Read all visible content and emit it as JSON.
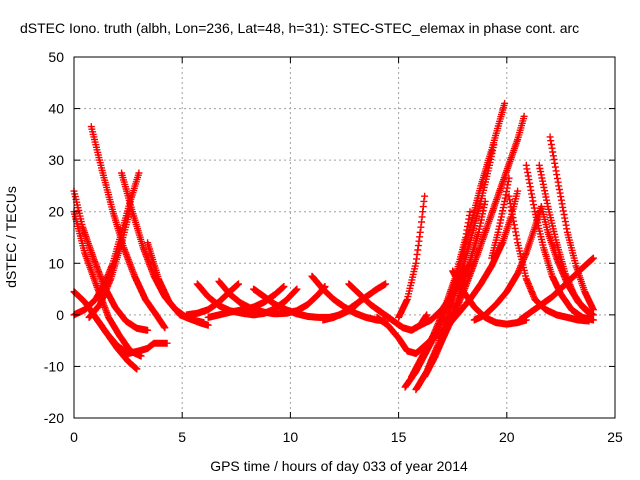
{
  "chart_data": {
    "type": "scatter",
    "title": "dSTEC Iono. truth (albh, Lon=236, Lat=48, h=31): STEC-STEC_elemax in phase cont. arc",
    "xlabel": "GPS time / hours of day 033 of year 2014",
    "ylabel": "dSTEC  / TECUs",
    "xlim": [
      0,
      25
    ],
    "ylim": [
      -20,
      50
    ],
    "xticks": [
      0,
      5,
      10,
      15,
      20,
      25
    ],
    "yticks": [
      -20,
      -10,
      0,
      10,
      20,
      30,
      40,
      50
    ],
    "grid": true,
    "marker": "plus",
    "color": "#ff0000",
    "series": [
      {
        "points": [
          [
            0.0,
            24
          ],
          [
            0.4,
            17
          ],
          [
            0.9,
            11
          ],
          [
            1.4,
            5.5
          ],
          [
            1.9,
            1.5
          ],
          [
            2.4,
            -1.2
          ],
          [
            2.9,
            -2.6
          ],
          [
            3.4,
            -3
          ]
        ]
      },
      {
        "points": [
          [
            0.0,
            20
          ],
          [
            0.5,
            12
          ],
          [
            1.1,
            5
          ],
          [
            1.6,
            -0.5
          ],
          [
            2.1,
            -4
          ],
          [
            2.6,
            -7
          ],
          [
            3.1,
            -8
          ]
        ]
      },
      {
        "points": [
          [
            0.0,
            4.5
          ],
          [
            0.5,
            2.5
          ],
          [
            1.0,
            -0.5
          ],
          [
            1.5,
            -3.5
          ],
          [
            2.0,
            -6.5
          ],
          [
            2.5,
            -9
          ],
          [
            2.9,
            -10.5
          ]
        ]
      },
      {
        "points": [
          [
            0.0,
            0
          ],
          [
            0.5,
            1
          ],
          [
            1.0,
            3
          ],
          [
            1.4,
            6
          ],
          [
            1.8,
            10
          ],
          [
            2.2,
            16
          ],
          [
            2.6,
            22
          ],
          [
            3.0,
            27.5
          ]
        ]
      },
      {
        "points": [
          [
            0.7,
            -0.5
          ],
          [
            1.2,
            2
          ],
          [
            1.7,
            7
          ],
          [
            2.2,
            14
          ],
          [
            2.6,
            20.5
          ]
        ]
      },
      {
        "points": [
          [
            0.8,
            36.5
          ],
          [
            1.3,
            28
          ],
          [
            1.8,
            20
          ],
          [
            2.3,
            13
          ],
          [
            2.8,
            7.5
          ],
          [
            3.3,
            3
          ],
          [
            3.8,
            0
          ],
          [
            4.2,
            -2.5
          ]
        ]
      },
      {
        "points": [
          [
            1.0,
            -0.5
          ],
          [
            1.5,
            -3.5
          ],
          [
            2.0,
            -6
          ],
          [
            2.5,
            -7.5
          ],
          [
            3.0,
            -7
          ],
          [
            3.4,
            -6.5
          ],
          [
            3.7,
            -5.5
          ],
          [
            4.3,
            -5.5
          ]
        ]
      },
      {
        "points": [
          [
            2.2,
            27.5
          ],
          [
            2.7,
            20
          ],
          [
            3.2,
            13
          ],
          [
            3.7,
            7.5
          ],
          [
            4.2,
            3.5
          ],
          [
            4.7,
            1
          ],
          [
            5.2,
            -0.5
          ],
          [
            5.8,
            -1.5
          ],
          [
            6.2,
            -2
          ]
        ]
      },
      {
        "points": [
          [
            3.4,
            14
          ],
          [
            3.9,
            7
          ],
          [
            4.4,
            2.5
          ],
          [
            4.9,
            0
          ],
          [
            5.5,
            -1
          ],
          [
            6.0,
            -1.5
          ]
        ]
      },
      {
        "points": [
          [
            5.7,
            6
          ],
          [
            6.2,
            3.5
          ],
          [
            6.7,
            1.8
          ],
          [
            7.2,
            0.8
          ],
          [
            7.8,
            0.3
          ],
          [
            8.3,
            0
          ],
          [
            8.8,
            0.3
          ],
          [
            9.3,
            1.2
          ],
          [
            9.8,
            2.8
          ],
          [
            10.3,
            5
          ]
        ]
      },
      {
        "points": [
          [
            5.2,
            0
          ],
          [
            5.7,
            0.3
          ],
          [
            6.2,
            1
          ],
          [
            6.7,
            2.5
          ],
          [
            7.2,
            4.5
          ],
          [
            7.6,
            6
          ]
        ]
      },
      {
        "points": [
          [
            6.2,
            -0.5
          ],
          [
            6.7,
            0
          ],
          [
            7.2,
            0.5
          ],
          [
            7.8,
            1
          ],
          [
            8.3,
            1.5
          ],
          [
            8.8,
            2.5
          ],
          [
            9.3,
            4
          ],
          [
            9.7,
            5.5
          ]
        ]
      },
      {
        "points": [
          [
            6.7,
            6.5
          ],
          [
            7.2,
            4
          ],
          [
            7.7,
            2.3
          ],
          [
            8.2,
            1.2
          ],
          [
            8.8,
            0.5
          ],
          [
            9.3,
            0.2
          ],
          [
            9.8,
            0.3
          ],
          [
            10.3,
            0.8
          ],
          [
            10.8,
            2
          ],
          [
            11.3,
            4
          ],
          [
            11.6,
            5.5
          ]
        ]
      },
      {
        "points": [
          [
            8.3,
            5
          ],
          [
            8.8,
            3.5
          ],
          [
            9.3,
            2
          ],
          [
            9.8,
            1
          ],
          [
            10.3,
            0.2
          ],
          [
            10.8,
            -0.3
          ],
          [
            11.3,
            -0.5
          ],
          [
            11.8,
            -0.5
          ],
          [
            12.3,
            0
          ],
          [
            12.8,
            1
          ],
          [
            13.3,
            3
          ]
        ]
      },
      {
        "points": [
          [
            11.0,
            7.5
          ],
          [
            11.5,
            5
          ],
          [
            12.0,
            3
          ],
          [
            12.5,
            1.5
          ],
          [
            13.0,
            0.3
          ],
          [
            13.5,
            -0.5
          ],
          [
            14.0,
            -1
          ],
          [
            14.4,
            -1.2
          ]
        ]
      },
      {
        "points": [
          [
            11.5,
            -1
          ],
          [
            12.0,
            -0.5
          ],
          [
            12.5,
            0.5
          ],
          [
            13.0,
            2
          ],
          [
            13.5,
            3.5
          ],
          [
            14.0,
            5
          ],
          [
            14.4,
            6
          ]
        ]
      },
      {
        "points": [
          [
            12.7,
            6
          ],
          [
            13.2,
            4
          ],
          [
            13.7,
            2
          ],
          [
            14.2,
            0.5
          ],
          [
            14.7,
            -1
          ],
          [
            15.2,
            -2.5
          ],
          [
            15.6,
            -3
          ],
          [
            16.0,
            -2
          ],
          [
            16.3,
            0
          ]
        ]
      },
      {
        "points": [
          [
            14.0,
            -0.5
          ],
          [
            14.5,
            -2
          ],
          [
            15.0,
            -4.5
          ],
          [
            15.4,
            -7
          ],
          [
            15.8,
            -7.5
          ],
          [
            16.2,
            -6
          ],
          [
            16.6,
            -4.5
          ]
        ]
      },
      {
        "points": [
          [
            15.0,
            -0.5
          ],
          [
            15.4,
            3
          ],
          [
            15.8,
            10
          ],
          [
            16.0,
            16
          ],
          [
            16.2,
            23
          ]
        ]
      },
      {
        "points": [
          [
            15.3,
            -14
          ],
          [
            15.8,
            -11
          ],
          [
            16.3,
            -7
          ],
          [
            16.8,
            -3
          ],
          [
            17.3,
            2
          ],
          [
            17.8,
            9
          ],
          [
            18.3,
            17
          ],
          [
            18.8,
            25
          ],
          [
            19.3,
            32
          ],
          [
            19.7,
            38
          ],
          [
            19.9,
            41
          ]
        ]
      },
      {
        "points": [
          [
            15.6,
            -12
          ],
          [
            16.1,
            -8
          ],
          [
            16.6,
            -4
          ],
          [
            17.1,
            1
          ],
          [
            17.6,
            7
          ],
          [
            18.1,
            15
          ],
          [
            18.3,
            20
          ]
        ]
      },
      {
        "points": [
          [
            15.8,
            -14.5
          ],
          [
            16.3,
            -11
          ],
          [
            16.8,
            -6
          ],
          [
            17.3,
            0
          ],
          [
            17.8,
            7
          ],
          [
            18.3,
            14
          ],
          [
            18.8,
            22
          ],
          [
            19.2,
            29
          ],
          [
            19.4,
            33
          ]
        ]
      },
      {
        "points": [
          [
            16.2,
            -12
          ],
          [
            16.7,
            -8
          ],
          [
            17.2,
            -3
          ],
          [
            17.7,
            2.5
          ],
          [
            18.2,
            9
          ],
          [
            18.7,
            16
          ],
          [
            19.0,
            22
          ]
        ]
      },
      {
        "points": [
          [
            16.5,
            -9
          ],
          [
            17.0,
            -5
          ],
          [
            17.5,
            -0.5
          ],
          [
            18.0,
            4.5
          ],
          [
            18.5,
            10
          ],
          [
            19.0,
            16
          ],
          [
            19.5,
            22
          ],
          [
            20.0,
            28
          ],
          [
            20.5,
            34
          ],
          [
            20.8,
            38.5
          ]
        ]
      },
      {
        "points": [
          [
            16.0,
            -2
          ],
          [
            16.5,
            -1
          ],
          [
            17.0,
            1
          ],
          [
            17.5,
            4
          ],
          [
            17.9,
            7
          ],
          [
            18.2,
            9.5
          ]
        ]
      },
      {
        "points": [
          [
            16.8,
            -4
          ],
          [
            17.3,
            -2
          ],
          [
            17.8,
            0.5
          ],
          [
            18.3,
            3
          ],
          [
            18.8,
            6
          ],
          [
            19.3,
            9.5
          ],
          [
            19.8,
            14
          ],
          [
            20.2,
            19
          ],
          [
            20.5,
            24
          ]
        ]
      },
      {
        "points": [
          [
            17.5,
            8.5
          ],
          [
            18.0,
            4.5
          ],
          [
            18.5,
            1.5
          ],
          [
            19.0,
            -0.5
          ],
          [
            19.5,
            -1.5
          ],
          [
            20.0,
            -1.8
          ],
          [
            20.5,
            -1.5
          ],
          [
            20.9,
            -1
          ]
        ]
      },
      {
        "points": [
          [
            18.5,
            -1
          ],
          [
            19.0,
            0
          ],
          [
            19.5,
            2
          ],
          [
            20.0,
            4.5
          ],
          [
            20.5,
            8
          ],
          [
            20.9,
            12
          ],
          [
            21.3,
            17
          ],
          [
            21.6,
            21
          ]
        ]
      },
      {
        "points": [
          [
            19.3,
            11
          ],
          [
            19.6,
            16
          ],
          [
            19.9,
            22
          ],
          [
            20.1,
            26.5
          ]
        ]
      },
      {
        "points": [
          [
            20.1,
            23
          ],
          [
            20.5,
            14
          ],
          [
            20.9,
            7
          ],
          [
            21.3,
            3
          ],
          [
            21.8,
            1
          ],
          [
            22.3,
            0
          ],
          [
            22.8,
            -0.5
          ],
          [
            23.3,
            -1
          ],
          [
            23.8,
            -1.2
          ]
        ]
      },
      {
        "points": [
          [
            20.9,
            29
          ],
          [
            21.3,
            20
          ],
          [
            21.7,
            13
          ],
          [
            22.1,
            7.5
          ],
          [
            22.5,
            4
          ],
          [
            23.0,
            1
          ],
          [
            23.5,
            -0.5
          ],
          [
            24.0,
            -1
          ]
        ]
      },
      {
        "points": [
          [
            22.0,
            34.5
          ],
          [
            22.4,
            25
          ],
          [
            22.8,
            16
          ],
          [
            23.2,
            9.5
          ],
          [
            23.6,
            4.5
          ],
          [
            24.0,
            1
          ]
        ]
      },
      {
        "points": [
          [
            21.5,
            29
          ],
          [
            21.9,
            21
          ],
          [
            22.3,
            14
          ],
          [
            22.7,
            8
          ],
          [
            23.1,
            4
          ],
          [
            23.5,
            1.5
          ],
          [
            23.9,
            0
          ]
        ]
      },
      {
        "points": [
          [
            21.6,
            21
          ],
          [
            21.9,
            16
          ],
          [
            22.3,
            11
          ],
          [
            22.8,
            6
          ],
          [
            23.3,
            2.5
          ],
          [
            23.8,
            0.5
          ],
          [
            24.0,
            0
          ]
        ]
      },
      {
        "points": [
          [
            20.6,
            -1
          ],
          [
            21.1,
            0.5
          ],
          [
            21.6,
            2
          ],
          [
            22.1,
            3.5
          ],
          [
            22.6,
            5.5
          ],
          [
            23.1,
            7.5
          ],
          [
            23.6,
            9.5
          ],
          [
            24.0,
            11
          ]
        ]
      }
    ]
  }
}
